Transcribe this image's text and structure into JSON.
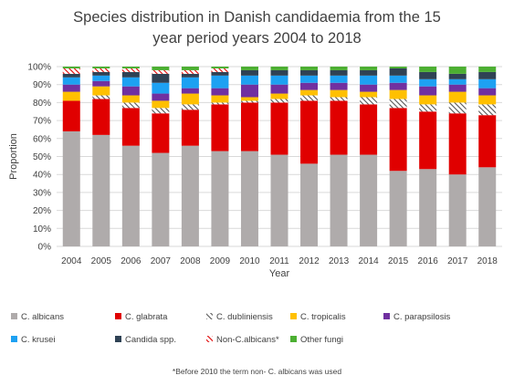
{
  "chart_data": {
    "type": "bar",
    "stacked": true,
    "title_line1": "Species distribution in Danish candidaemia from the 15",
    "title_line2": "year period years 2004 to 2018",
    "xlabel": "Year",
    "ylabel": "Proportion",
    "ylim": [
      0,
      100
    ],
    "yticks": [
      "0%",
      "10%",
      "20%",
      "30%",
      "40%",
      "50%",
      "60%",
      "70%",
      "80%",
      "90%",
      "100%"
    ],
    "grid": true,
    "legend_position": "bottom",
    "categories": [
      "2004",
      "2005",
      "2006",
      "2007",
      "2008",
      "2009",
      "2010",
      "2011",
      "2012",
      "2013",
      "2014",
      "2015",
      "2016",
      "2017",
      "2018"
    ],
    "series": [
      {
        "name": "C. albicans",
        "color": "#afabab",
        "pattern": "solid",
        "values": [
          64,
          62,
          56,
          52,
          56,
          53,
          53,
          51,
          46,
          51,
          51,
          42,
          43,
          40,
          44
        ]
      },
      {
        "name": "C. glabrata",
        "color": "#e00000",
        "pattern": "solid",
        "values": [
          17,
          20,
          21,
          22,
          20,
          26,
          27,
          29,
          35,
          30,
          28,
          35,
          32,
          34,
          29
        ]
      },
      {
        "name": "C. dubliniensis",
        "color": "#555555",
        "pattern": "hatch",
        "values": [
          0,
          2,
          3,
          3,
          3,
          1,
          1,
          2,
          3,
          2,
          4,
          5,
          4,
          6,
          6
        ]
      },
      {
        "name": "C. tropicalis",
        "color": "#ffc000",
        "pattern": "solid",
        "values": [
          5,
          5,
          4,
          4,
          6,
          4,
          2,
          3,
          3,
          4,
          3,
          5,
          5,
          6,
          5
        ]
      },
      {
        "name": "C. parapsilosis",
        "color": "#7030a0",
        "pattern": "solid",
        "values": [
          4,
          3,
          5,
          4,
          3,
          4,
          7,
          5,
          4,
          4,
          4,
          4,
          5,
          4,
          4
        ]
      },
      {
        "name": "C. krusei",
        "color": "#1da1f2",
        "pattern": "solid",
        "values": [
          4,
          3,
          5,
          6,
          6,
          7,
          5,
          5,
          4,
          4,
          5,
          4,
          4,
          3,
          5
        ]
      },
      {
        "name": "Candida spp.",
        "color": "#2f4254",
        "pattern": "solid",
        "values": [
          2,
          2,
          3,
          5,
          2,
          2,
          3,
          3,
          3,
          3,
          3,
          4,
          4,
          3,
          4
        ]
      },
      {
        "name": "Non-C.albicans*",
        "color": "#e00000",
        "pattern": "hatch",
        "values": [
          3,
          2,
          2,
          2,
          2,
          2,
          0,
          0,
          0,
          0,
          0,
          0,
          0,
          0,
          0
        ]
      },
      {
        "name": "Other fungi",
        "color": "#4caf32",
        "pattern": "solid",
        "values": [
          1,
          1,
          1,
          2,
          2,
          1,
          2,
          2,
          2,
          2,
          2,
          1,
          3,
          4,
          3
        ]
      }
    ],
    "footnote": "*Before 2010 the term non- C. albicans was used"
  }
}
